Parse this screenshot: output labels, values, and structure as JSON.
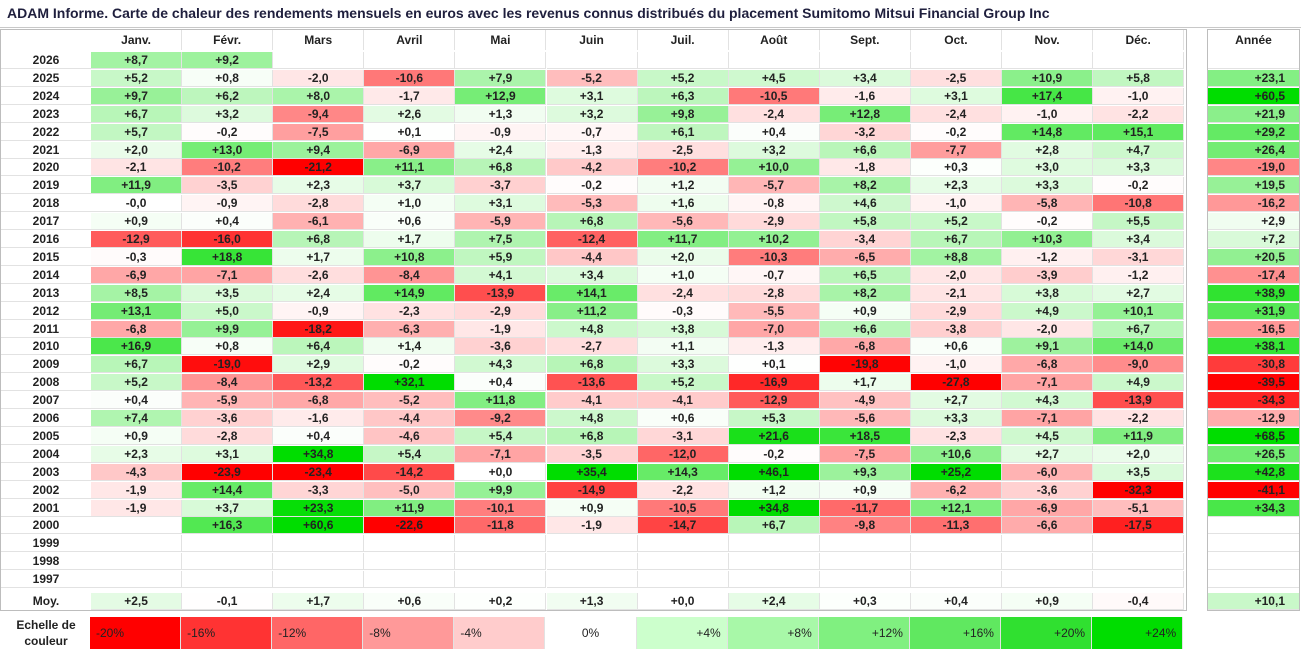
{
  "title": "ADAM Informe. Carte de chaleur des rendements mensuels en euros avec les revenus connus distribués du placement Sumitomo Mitsui Financial Group Inc",
  "chart_data": {
    "type": "heatmap",
    "title": "ADAM Informe. Carte de chaleur des rendements mensuels en euros avec les revenus connus distribués du placement Sumitomo Mitsui Financial Group Inc",
    "months": [
      "Janv.",
      "Févr.",
      "Mars",
      "Avril",
      "Mai",
      "Juin",
      "Juil.",
      "Août",
      "Sept.",
      "Oct.",
      "Nov.",
      "Déc."
    ],
    "year_header": "Année",
    "years": [
      "2026",
      "2025",
      "2024",
      "2023",
      "2022",
      "2021",
      "2020",
      "2019",
      "2018",
      "2017",
      "2016",
      "2015",
      "2014",
      "2013",
      "2012",
      "2011",
      "2010",
      "2009",
      "2008",
      "2007",
      "2006",
      "2005",
      "2004",
      "2003",
      "2002",
      "2001",
      "2000",
      "1999",
      "1998",
      "1997"
    ],
    "values": [
      [
        8.7,
        9.2,
        null,
        null,
        null,
        null,
        null,
        null,
        null,
        null,
        null,
        null
      ],
      [
        5.2,
        0.8,
        -2.0,
        -10.6,
        7.9,
        -5.2,
        5.2,
        4.5,
        3.4,
        -2.5,
        10.9,
        5.8
      ],
      [
        9.7,
        6.2,
        8.0,
        -1.7,
        12.9,
        3.1,
        6.3,
        -10.5,
        -1.6,
        3.1,
        17.4,
        -1.0
      ],
      [
        6.7,
        3.2,
        -9.4,
        2.6,
        1.3,
        3.2,
        9.8,
        -2.4,
        12.8,
        -2.4,
        -1.0,
        -2.2
      ],
      [
        5.7,
        -0.2,
        -7.5,
        0.1,
        -0.9,
        -0.7,
        6.1,
        0.4,
        -3.2,
        -0.2,
        14.8,
        15.1
      ],
      [
        2.0,
        13.0,
        9.4,
        -6.9,
        2.4,
        -1.3,
        -2.5,
        3.2,
        6.6,
        -7.7,
        2.8,
        4.7
      ],
      [
        -2.1,
        -10.2,
        -21.2,
        11.1,
        6.8,
        -4.2,
        -10.2,
        10.0,
        -1.8,
        0.3,
        3.0,
        3.3
      ],
      [
        11.9,
        -3.5,
        2.3,
        3.7,
        -3.7,
        -0.2,
        1.2,
        -5.7,
        8.2,
        2.3,
        3.3,
        -0.2
      ],
      [
        -0.0,
        -0.9,
        -2.8,
        1.0,
        3.1,
        -5.3,
        1.6,
        -0.8,
        4.6,
        -1.0,
        -5.8,
        -10.8
      ],
      [
        0.9,
        0.4,
        -6.1,
        0.6,
        -5.9,
        6.8,
        -5.6,
        -2.9,
        5.8,
        5.2,
        -0.2,
        5.5
      ],
      [
        -12.9,
        -16.0,
        6.8,
        1.7,
        7.5,
        -12.4,
        11.7,
        10.2,
        -3.4,
        6.7,
        10.3,
        3.4
      ],
      [
        -0.3,
        18.8,
        1.7,
        10.8,
        5.9,
        -4.4,
        2.0,
        -10.3,
        -6.5,
        8.8,
        -1.2,
        -3.1
      ],
      [
        -6.9,
        -7.1,
        -2.6,
        -8.4,
        4.1,
        3.4,
        1.0,
        -0.7,
        6.5,
        -2.0,
        -3.9,
        -1.2
      ],
      [
        8.5,
        3.5,
        2.4,
        14.9,
        -13.9,
        14.1,
        -2.4,
        -2.8,
        8.2,
        -2.1,
        3.8,
        2.7
      ],
      [
        13.1,
        5.0,
        -0.9,
        -2.3,
        -2.9,
        11.2,
        -0.3,
        -5.5,
        0.9,
        -2.9,
        4.9,
        10.1
      ],
      [
        -6.8,
        9.9,
        -18.2,
        -6.3,
        -1.9,
        4.8,
        3.8,
        -7.0,
        6.6,
        -3.8,
        -2.0,
        6.7
      ],
      [
        16.9,
        0.8,
        6.4,
        1.4,
        -3.6,
        -2.7,
        1.1,
        -1.3,
        -6.8,
        0.6,
        9.1,
        14.0
      ],
      [
        6.7,
        -19.0,
        2.9,
        -0.2,
        4.3,
        6.8,
        3.3,
        0.1,
        -19.8,
        -1.0,
        -6.8,
        -9.0
      ],
      [
        5.2,
        -8.4,
        -13.2,
        32.1,
        0.4,
        -13.6,
        5.2,
        -16.9,
        1.7,
        -27.8,
        -7.1,
        4.9
      ],
      [
        0.4,
        -5.9,
        -6.8,
        -5.2,
        11.8,
        -4.1,
        -4.1,
        -12.9,
        -4.9,
        2.7,
        4.3,
        -13.9
      ],
      [
        7.4,
        -3.6,
        -1.6,
        -4.4,
        -9.2,
        4.8,
        0.6,
        5.3,
        -5.6,
        3.3,
        -7.1,
        -2.2
      ],
      [
        0.9,
        -2.8,
        0.4,
        -4.6,
        5.4,
        6.8,
        -3.1,
        21.6,
        18.5,
        -2.3,
        4.5,
        11.9
      ],
      [
        2.3,
        3.1,
        34.8,
        5.4,
        -7.1,
        -3.5,
        -12.0,
        -0.2,
        -7.5,
        10.6,
        2.7,
        2.0
      ],
      [
        -4.3,
        -23.9,
        -23.4,
        -14.2,
        0.0,
        35.4,
        14.3,
        46.1,
        9.3,
        25.2,
        -6.0,
        3.5
      ],
      [
        -1.9,
        14.4,
        -3.3,
        -5.0,
        9.9,
        -14.9,
        -2.2,
        1.2,
        0.9,
        -6.2,
        -3.6,
        -32.3
      ],
      [
        -1.9,
        3.7,
        23.3,
        11.9,
        -10.1,
        0.9,
        -10.5,
        34.8,
        -11.7,
        12.1,
        -6.9,
        -5.1
      ],
      [
        null,
        16.3,
        60.6,
        -22.6,
        -11.8,
        -1.9,
        -14.7,
        6.7,
        -9.8,
        -11.3,
        -6.6,
        -17.5
      ],
      [
        null,
        null,
        null,
        null,
        null,
        null,
        null,
        null,
        null,
        null,
        null,
        null
      ],
      [
        null,
        null,
        null,
        null,
        null,
        null,
        null,
        null,
        null,
        null,
        null,
        null
      ],
      [
        null,
        null,
        null,
        null,
        null,
        null,
        null,
        null,
        null,
        null,
        null,
        null
      ]
    ],
    "annual": [
      null,
      23.1,
      60.5,
      21.9,
      29.2,
      26.4,
      -19.0,
      19.5,
      -16.2,
      2.9,
      7.2,
      20.5,
      -17.4,
      38.9,
      31.9,
      -16.5,
      38.1,
      -30.8,
      -39.5,
      -34.3,
      -12.9,
      68.5,
      26.5,
      42.8,
      -41.1,
      34.3,
      null,
      null,
      null,
      null
    ],
    "average_label": "Moy.",
    "averages": [
      2.5,
      -0.1,
      1.7,
      0.6,
      0.2,
      1.3,
      0.0,
      2.4,
      0.3,
      0.4,
      0.9,
      -0.4
    ],
    "average_annual": 10.1,
    "scale": {
      "label": "Echelle de couleur",
      "stops": [
        "-20%",
        "-16%",
        "-12%",
        "-8%",
        "-4%",
        "0%",
        "+4%",
        "+8%",
        "+12%",
        "+16%",
        "+20%",
        "+24%"
      ],
      "colors": [
        "#ff0000",
        "#ff3333",
        "#ff6666",
        "#ff9999",
        "#ffcccc",
        "#ffffff",
        "#ccffcc",
        "#a8f8a8",
        "#80f080",
        "#60e860",
        "#30e030",
        "#00dd00"
      ]
    }
  }
}
